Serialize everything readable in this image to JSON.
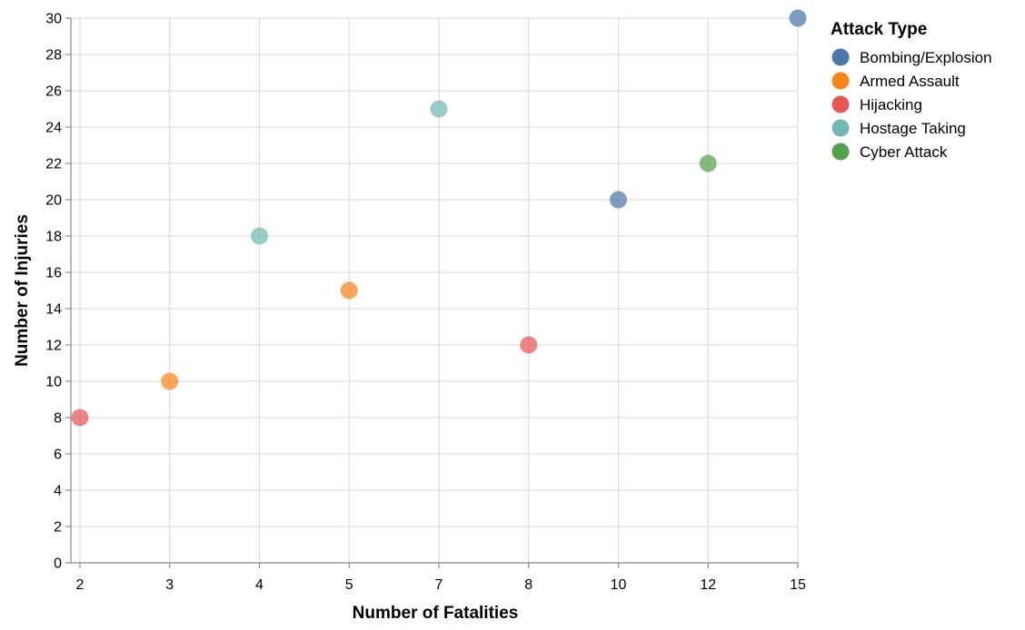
{
  "chart_data": {
    "type": "scatter",
    "xlabel": "Number of Fatalities",
    "ylabel": "Number of Injuries",
    "x_categories": [
      "2",
      "3",
      "4",
      "5",
      "7",
      "8",
      "10",
      "12",
      "15"
    ],
    "ylim": [
      0,
      30
    ],
    "y_ticks": [
      0,
      2,
      4,
      6,
      8,
      10,
      12,
      14,
      16,
      18,
      20,
      22,
      24,
      26,
      28,
      30
    ],
    "grid": true,
    "legend": {
      "title": "Attack Type",
      "placement": "top-right"
    },
    "series": [
      {
        "name": "Bombing/Explosion",
        "color": "#4c78a8",
        "points": [
          {
            "x": "10",
            "y": 20
          },
          {
            "x": "15",
            "y": 30
          }
        ]
      },
      {
        "name": "Armed Assault",
        "color": "#f58518",
        "points": [
          {
            "x": "3",
            "y": 10
          },
          {
            "x": "5",
            "y": 15
          }
        ]
      },
      {
        "name": "Hijacking",
        "color": "#e45756",
        "points": [
          {
            "x": "2",
            "y": 8
          },
          {
            "x": "8",
            "y": 12
          }
        ]
      },
      {
        "name": "Hostage Taking",
        "color": "#72b7b2",
        "points": [
          {
            "x": "4",
            "y": 18
          },
          {
            "x": "7",
            "y": 25
          }
        ]
      },
      {
        "name": "Cyber Attack",
        "color": "#54a24b",
        "points": [
          {
            "x": "12",
            "y": 22
          }
        ]
      }
    ]
  }
}
